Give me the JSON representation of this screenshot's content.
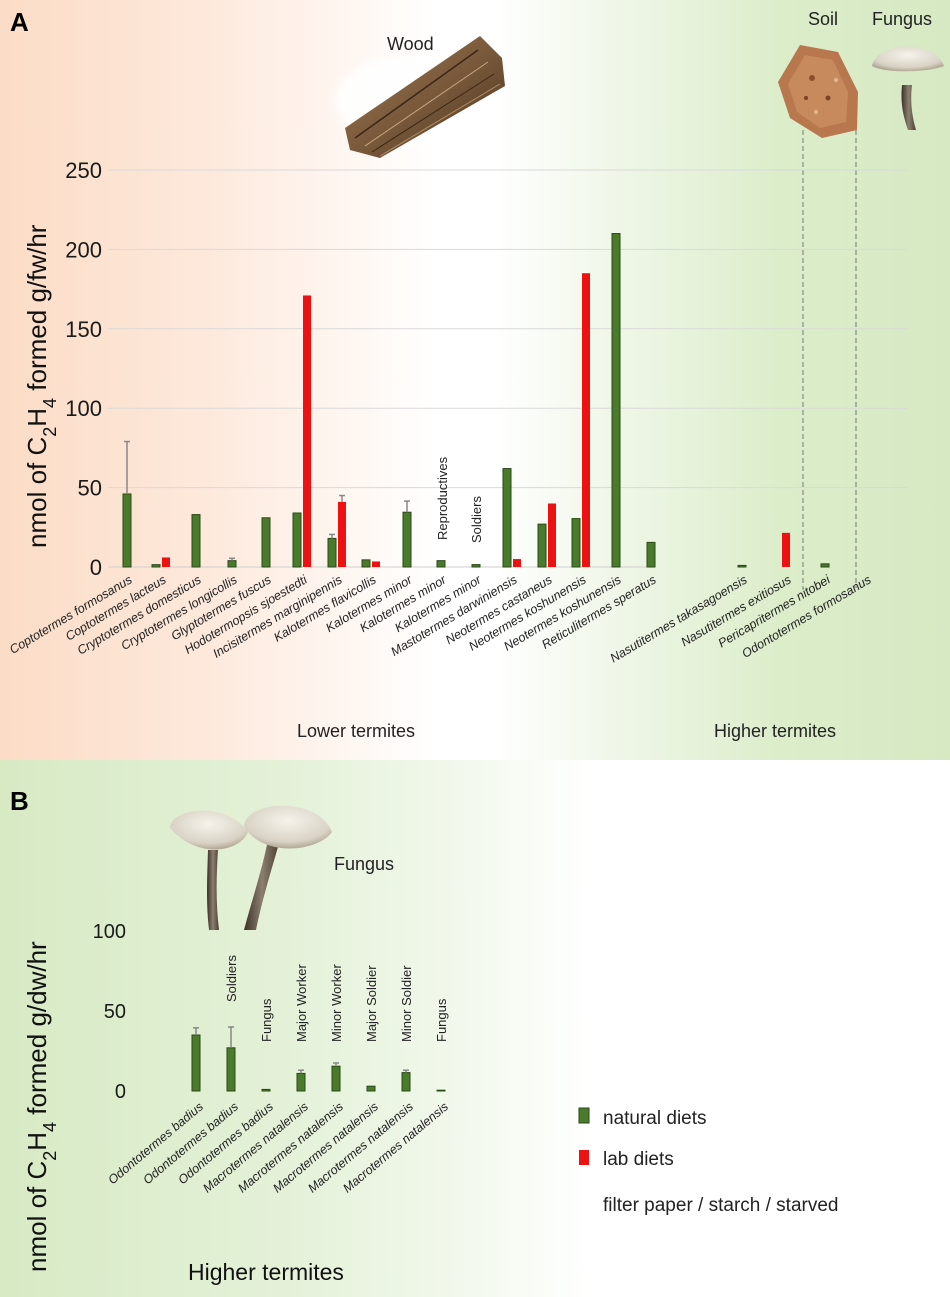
{
  "colors": {
    "natural": "#4a7a2c",
    "natural_stroke": "#2a4a15",
    "lab": "#ee1111",
    "grid": "#d9d9d9",
    "error": "#888888"
  },
  "panel_a": {
    "label": "A",
    "images": {
      "wood": "Wood",
      "soil": "Soil",
      "fungus": "Fungus"
    },
    "groups": {
      "lower": "Lower termites",
      "higher": "Higher termites"
    },
    "annotations": {
      "reproductives": "Reproductives",
      "soldiers": "Soldiers"
    },
    "ylabel": {
      "pre": "nmol of C",
      "sub1": "2",
      "mid": "H",
      "sub2": "4",
      "post": " formed g/fw/hr"
    }
  },
  "panel_b": {
    "label": "B",
    "images": {
      "fungus": "Fungus"
    },
    "group": "Higher termites",
    "ylabel": {
      "pre": "nmol of C",
      "sub1": "2",
      "mid": "H",
      "sub2": "4",
      "post": " formed g/dw/hr"
    }
  },
  "legend": {
    "natural": "natural diets",
    "lab": "lab diets",
    "note": "filter paper / starch / starved"
  },
  "chart_data": [
    {
      "type": "bar",
      "title": "A",
      "ylabel": "nmol of C2H4 formed g/fw/hr",
      "ylim": [
        0,
        250
      ],
      "yticks": [
        "0",
        "50",
        "100",
        "150",
        "200",
        "250"
      ],
      "grid": true,
      "categories": [
        "Coptotermes formosanus",
        "Coptotermes lacteus",
        "Cryptotermes domesticus",
        "Cryptotermes longicollis",
        "Glyptotermes fuscus",
        "Hodotermopsis sjoestedti",
        "Incisitermes marginipennis",
        "Kalotermes flavicollis",
        "Kalotermes minor",
        "Kalotermes minor",
        "Kalotermes minor",
        "Mastotermes darwiniensis",
        "Neotermes castaneus",
        "Neotermes koshunensis",
        "Neotermes koshunensis",
        "Reticulitermes speratus",
        "Nasutitermes takasagoensis",
        "Nasutitermes exitiosus",
        "Pericapritermes nitobei",
        "Odontotermes formosanus"
      ],
      "series": [
        {
          "name": "natural diets",
          "values": [
            46,
            1.5,
            33,
            4,
            31,
            34,
            18,
            4.5,
            34.5,
            4,
            1.5,
            62,
            27,
            30.5,
            210,
            15.5,
            1,
            null,
            2,
            null
          ],
          "errors": [
            33,
            null,
            null,
            1.5,
            null,
            null,
            2.5,
            null,
            7,
            null,
            null,
            null,
            null,
            null,
            null,
            null,
            null,
            null,
            null,
            null
          ]
        },
        {
          "name": "lab diets",
          "values": [
            null,
            6,
            null,
            null,
            null,
            171,
            41,
            3.5,
            null,
            null,
            null,
            5,
            40,
            185,
            null,
            null,
            null,
            21.5,
            null,
            null
          ],
          "errors": [
            null,
            null,
            null,
            null,
            null,
            null,
            4,
            null,
            null,
            null,
            null,
            null,
            null,
            null,
            null,
            null,
            null,
            null,
            null,
            null
          ]
        }
      ]
    },
    {
      "type": "bar",
      "title": "B",
      "ylabel": "nmol of C2H4 formed g/dw/hr",
      "ylim": [
        0,
        100
      ],
      "yticks": [
        "0",
        "50",
        "100"
      ],
      "grid": false,
      "categories": [
        "Odontotermes badius",
        "Odontotermes badius",
        "Odontotermes badius",
        "Macrotermes natalensis",
        "Macrotermes natalensis",
        "Macrotermes natalensis",
        "Macrotermes natalensis",
        "Macrotermes natalensis"
      ],
      "annotations": [
        null,
        "Soldiers",
        "Fungus",
        "Major Worker",
        "Minor Worker",
        "Major Soldier",
        "Minor Soldier",
        "Fungus"
      ],
      "series": [
        {
          "name": "natural diets",
          "values": [
            35,
            27,
            1,
            11,
            15.5,
            3,
            11.5,
            0.5
          ],
          "errors": [
            4.5,
            13,
            null,
            2,
            2,
            null,
            1.5,
            null
          ]
        }
      ]
    }
  ]
}
